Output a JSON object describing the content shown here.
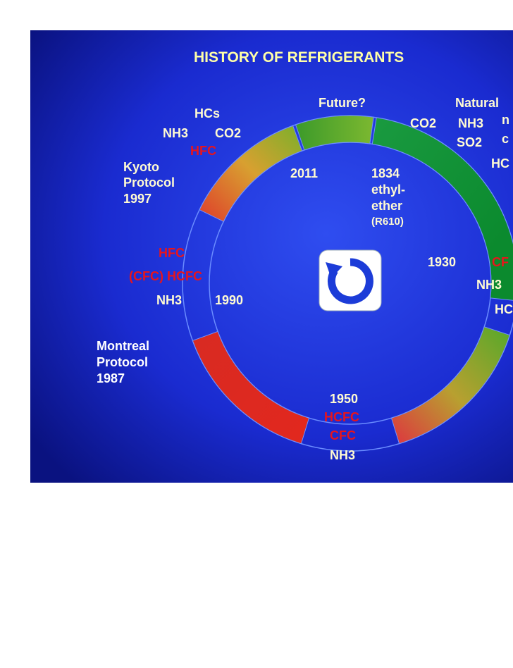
{
  "title": "HISTORY OF REFRIGERANTS",
  "labels": [
    "Future?",
    "Natural",
    "HCs",
    "NH3",
    "CO2",
    "CO2",
    "NH3",
    "n",
    "SO2",
    "c",
    "HFC",
    "Kyoto",
    "Protocol",
    "1997",
    "2011",
    "1834",
    "ethyl-",
    "ether",
    "(R610)",
    "HC",
    "HFC",
    "(CFC) HCFC",
    "NH3",
    "1990",
    "1930",
    "CF",
    "NH3",
    "HC",
    "Montreal",
    "Protocol",
    "1987",
    "1950",
    "HCFC",
    "CFC",
    "NH3"
  ]
}
